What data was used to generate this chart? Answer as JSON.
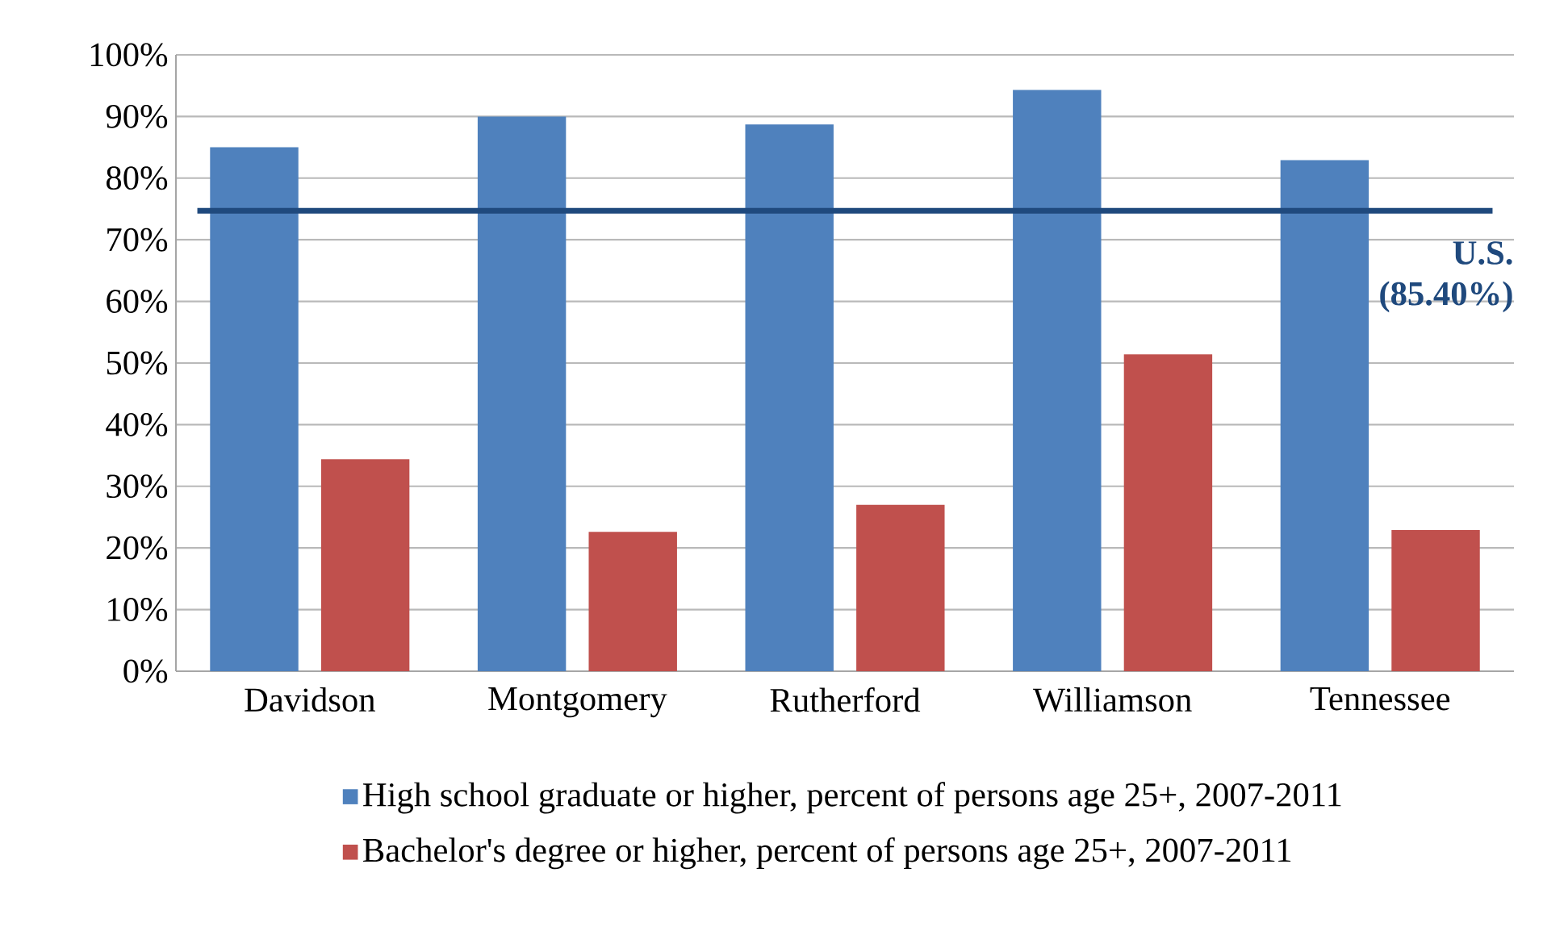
{
  "chart_data": {
    "type": "bar",
    "categories": [
      "Davidson",
      "Montgomery",
      "Rutherford",
      "Williamson",
      "Tennessee"
    ],
    "series": [
      {
        "name": "High school graduate or higher, percent of persons age 25+, 2007-2011",
        "color": "#4f81bd",
        "values": [
          85.0,
          90.0,
          88.7,
          94.3,
          82.9
        ]
      },
      {
        "name": "Bachelor's degree or higher, percent of persons age 25+, 2007-2011",
        "color": "#c0504d",
        "values": [
          34.4,
          22.6,
          27.0,
          51.4,
          22.9
        ]
      }
    ],
    "ylim": [
      0,
      100
    ],
    "yticks": [
      {
        "value": 0,
        "label": "0%"
      },
      {
        "value": 10,
        "label": "10%"
      },
      {
        "value": 20,
        "label": "20%"
      },
      {
        "value": 30,
        "label": "30%"
      },
      {
        "value": 40,
        "label": "40%"
      },
      {
        "value": 50,
        "label": "50%"
      },
      {
        "value": 60,
        "label": "60%"
      },
      {
        "value": 70,
        "label": "70%"
      },
      {
        "value": 80,
        "label": "80%"
      },
      {
        "value": 90,
        "label": "90%"
      },
      {
        "value": 100,
        "label": "100%"
      }
    ],
    "ref_lines": [
      {
        "axis": "y",
        "value": 74.7,
        "label": "U.S. (85.40%)",
        "color": "#1f497d"
      }
    ],
    "grid": "y",
    "legend": "bottom"
  }
}
